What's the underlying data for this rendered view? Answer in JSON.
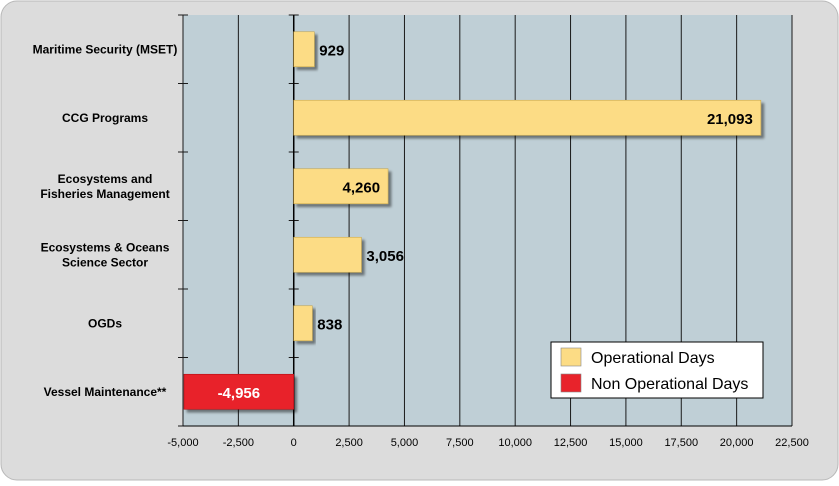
{
  "chart_data": {
    "type": "bar",
    "orientation": "horizontal",
    "categories": [
      "Maritime Security (MSET)",
      "CCG Programs",
      "Ecosystems and Fisheries Management",
      "Ecosystems & Oceans Science Sector",
      "OGDs",
      "Vessel Maintenance**"
    ],
    "category_lines": [
      [
        "Maritime Security (MSET)"
      ],
      [
        "CCG Programs"
      ],
      [
        "Ecosystems and",
        "Fisheries Management"
      ],
      [
        "Ecosystems & Oceans",
        "Science Sector"
      ],
      [
        "OGDs"
      ],
      [
        "Vessel Maintenance**"
      ]
    ],
    "values": [
      929,
      21093,
      4260,
      3056,
      838,
      -4956
    ],
    "value_labels": [
      "929",
      "21,093",
      "4,260",
      "3,056",
      "838",
      "-4,956"
    ],
    "xlim": [
      -5000,
      22500
    ],
    "xticks": [
      -5000,
      -2500,
      0,
      2500,
      5000,
      7500,
      10000,
      12500,
      15000,
      17500,
      20000,
      22500
    ],
    "xtick_labels": [
      "-5,000",
      "-2,500",
      "0",
      "2,500",
      "5,000",
      "7,500",
      "10,000",
      "12,500",
      "15,000",
      "17,500",
      "20,000",
      "22,500"
    ],
    "grid": true,
    "legend_position": "bottom-right",
    "legend": [
      {
        "label": "Operational Days",
        "color": "#fcdc85"
      },
      {
        "label": "Non Operational Days",
        "color": "#e8232b"
      }
    ],
    "colors": {
      "positive": "#fcdc85",
      "negative": "#e8232b",
      "plot_background": "#bfcfd6",
      "frame_background": "#dcdcdc"
    }
  }
}
